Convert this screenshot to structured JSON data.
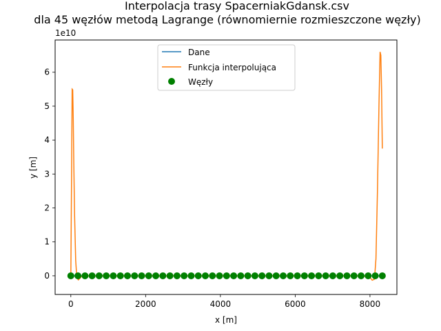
{
  "chart_data": {
    "type": "line",
    "title_line1": "Interpolacja trasy SpacerniakGdansk.csv",
    "title_line2": "dla 45 węzłów metodą  Lagrange (równomiernie rozmieszczone węzły)",
    "xlabel": "x [m]",
    "ylabel": "y [m]",
    "offset_text": "1e10",
    "xlim": [
      -420,
      8720
    ],
    "ylim": [
      -0.55,
      6.95
    ],
    "y_scale_factor": 10000000000,
    "xticks": [
      0,
      2000,
      4000,
      6000,
      8000
    ],
    "yticks": [
      0,
      1,
      2,
      3,
      4,
      5,
      6
    ],
    "grid": false,
    "legend_position": "top-center",
    "colors": {
      "data": "#1f77b4",
      "interpolation": "#ff7f0e",
      "nodes": "#008000"
    },
    "series": [
      {
        "name": "Dane",
        "kind": "line",
        "x": [
          0,
          8330
        ],
        "y": [
          0,
          0
        ]
      },
      {
        "name": "Funkcja interpolująca",
        "kind": "line",
        "x": [
          0,
          20,
          35,
          50,
          65,
          80,
          100,
          130,
          160,
          200,
          240,
          280,
          320,
          400,
          500,
          700,
          1000,
          2000,
          4000,
          6000,
          7500,
          7800,
          8000,
          8060,
          8120,
          8160,
          8200,
          8240,
          8270,
          8290,
          8310,
          8330
        ],
        "y": [
          0.0,
          3.0,
          5.5,
          5.48,
          4.6,
          3.3,
          1.8,
          0.45,
          -0.05,
          -0.12,
          -0.08,
          -0.02,
          -0.01,
          0.0,
          0.0,
          0.0,
          0.0,
          0.0,
          0.0,
          0.0,
          0.0,
          0.0,
          -0.05,
          -0.13,
          -0.1,
          0.5,
          2.5,
          5.0,
          6.6,
          6.5,
          5.5,
          3.75
        ]
      },
      {
        "name": "Węzły",
        "kind": "scatter",
        "x": [
          0,
          189.3,
          378.6,
          568.0,
          757.3,
          946.6,
          1135.9,
          1325.2,
          1514.5,
          1703.9,
          1893.2,
          2082.5,
          2271.8,
          2461.1,
          2650.5,
          2839.8,
          3029.1,
          3218.4,
          3407.7,
          3597.0,
          3786.4,
          3975.7,
          4165.0,
          4354.3,
          4543.6,
          4733.0,
          4922.3,
          5111.6,
          5300.9,
          5490.2,
          5679.5,
          5868.9,
          6058.2,
          6247.5,
          6436.8,
          6626.1,
          6815.5,
          7004.8,
          7194.1,
          7383.4,
          7572.7,
          7762.0,
          7951.4,
          8140.7,
          8330.0
        ],
        "y": [
          0,
          0,
          0,
          0,
          0,
          0,
          0,
          0,
          0,
          0,
          0,
          0,
          0,
          0,
          0,
          0,
          0,
          0,
          0,
          0,
          0,
          0,
          0,
          0,
          0,
          0,
          0,
          0,
          0,
          0,
          0,
          0,
          0,
          0,
          0,
          0,
          0,
          0,
          0,
          0,
          0,
          0,
          0,
          0,
          0
        ]
      }
    ]
  }
}
